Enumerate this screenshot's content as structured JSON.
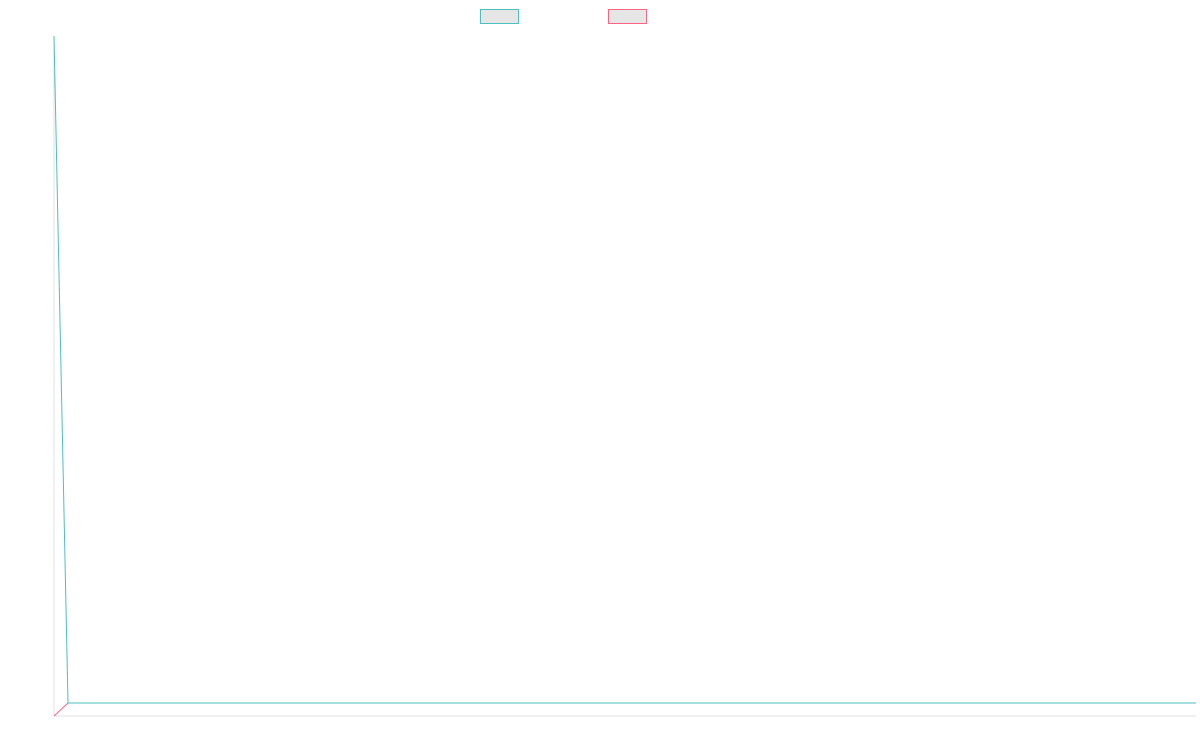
{
  "chart_data": {
    "type": "line",
    "title": "",
    "xlabel": "",
    "ylabel": "",
    "grid": false,
    "legend_position": "top-center",
    "series": [
      {
        "label": "",
        "color": "#4bc0c0"
      },
      {
        "label": "",
        "color": "#ff6384"
      }
    ]
  },
  "colors": {
    "axis": "#e0e0e0"
  }
}
